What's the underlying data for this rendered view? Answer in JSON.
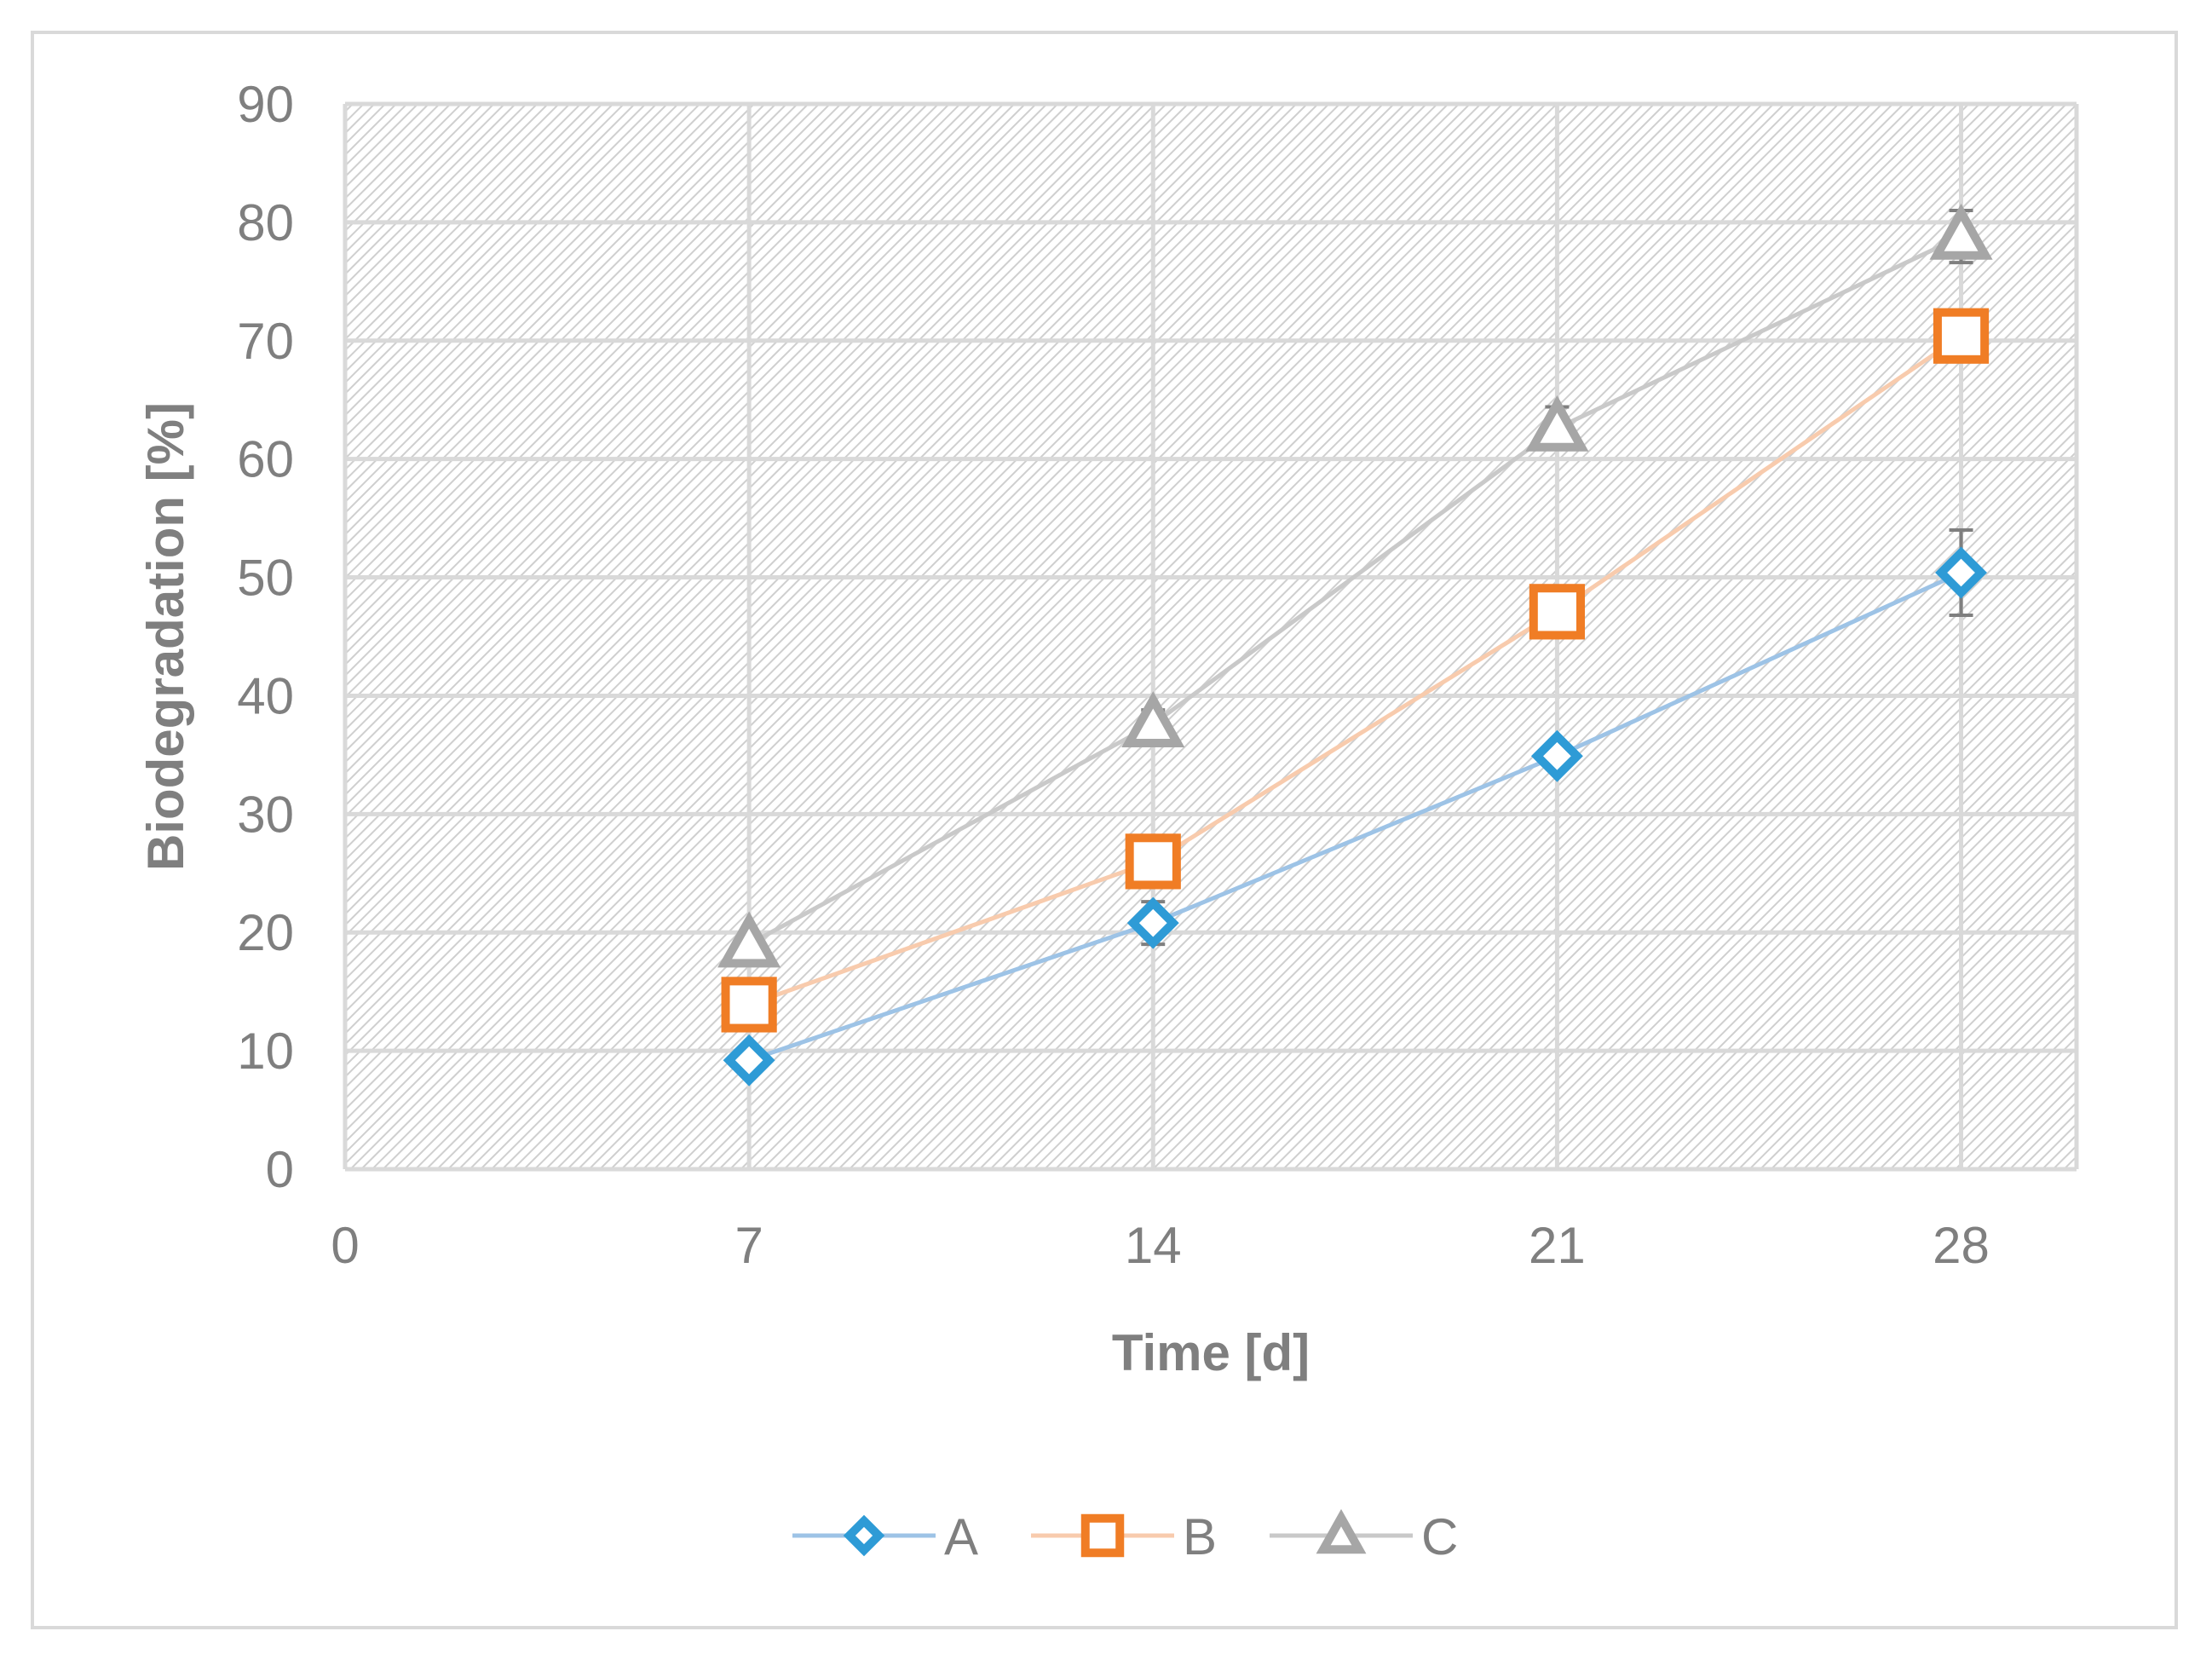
{
  "chart_data": {
    "type": "line",
    "xlabel": "Time [d]",
    "ylabel": "Biodegradation [%]",
    "xlim": [
      0,
      30
    ],
    "ylim": [
      0,
      90
    ],
    "x_ticks": [
      0,
      7,
      14,
      21,
      28
    ],
    "y_ticks": [
      0,
      10,
      20,
      30,
      40,
      50,
      60,
      70,
      80,
      90
    ],
    "grid": true,
    "legend_position": "bottom",
    "x": [
      7,
      14,
      21,
      28
    ],
    "series": [
      {
        "name": "A",
        "marker": "diamond",
        "line_color": "#9dc3e6",
        "marker_color": "#2e9bd6",
        "values": [
          9.2,
          20.8,
          34.9,
          50.4
        ],
        "error": [
          0.8,
          1.8,
          1.0,
          3.6
        ]
      },
      {
        "name": "B",
        "marker": "square",
        "line_color": "#f8cbad",
        "marker_color": "#f07d25",
        "values": [
          13.9,
          26.0,
          47.1,
          70.4
        ],
        "error": [
          0.6,
          0.8,
          0.8,
          2.0
        ]
      },
      {
        "name": "C",
        "marker": "triangle",
        "line_color": "#c9c9c9",
        "marker_color": "#a6a6a6",
        "values": [
          19.0,
          37.6,
          62.6,
          78.8
        ],
        "error": [
          0.5,
          1.2,
          1.8,
          2.2
        ]
      }
    ]
  }
}
